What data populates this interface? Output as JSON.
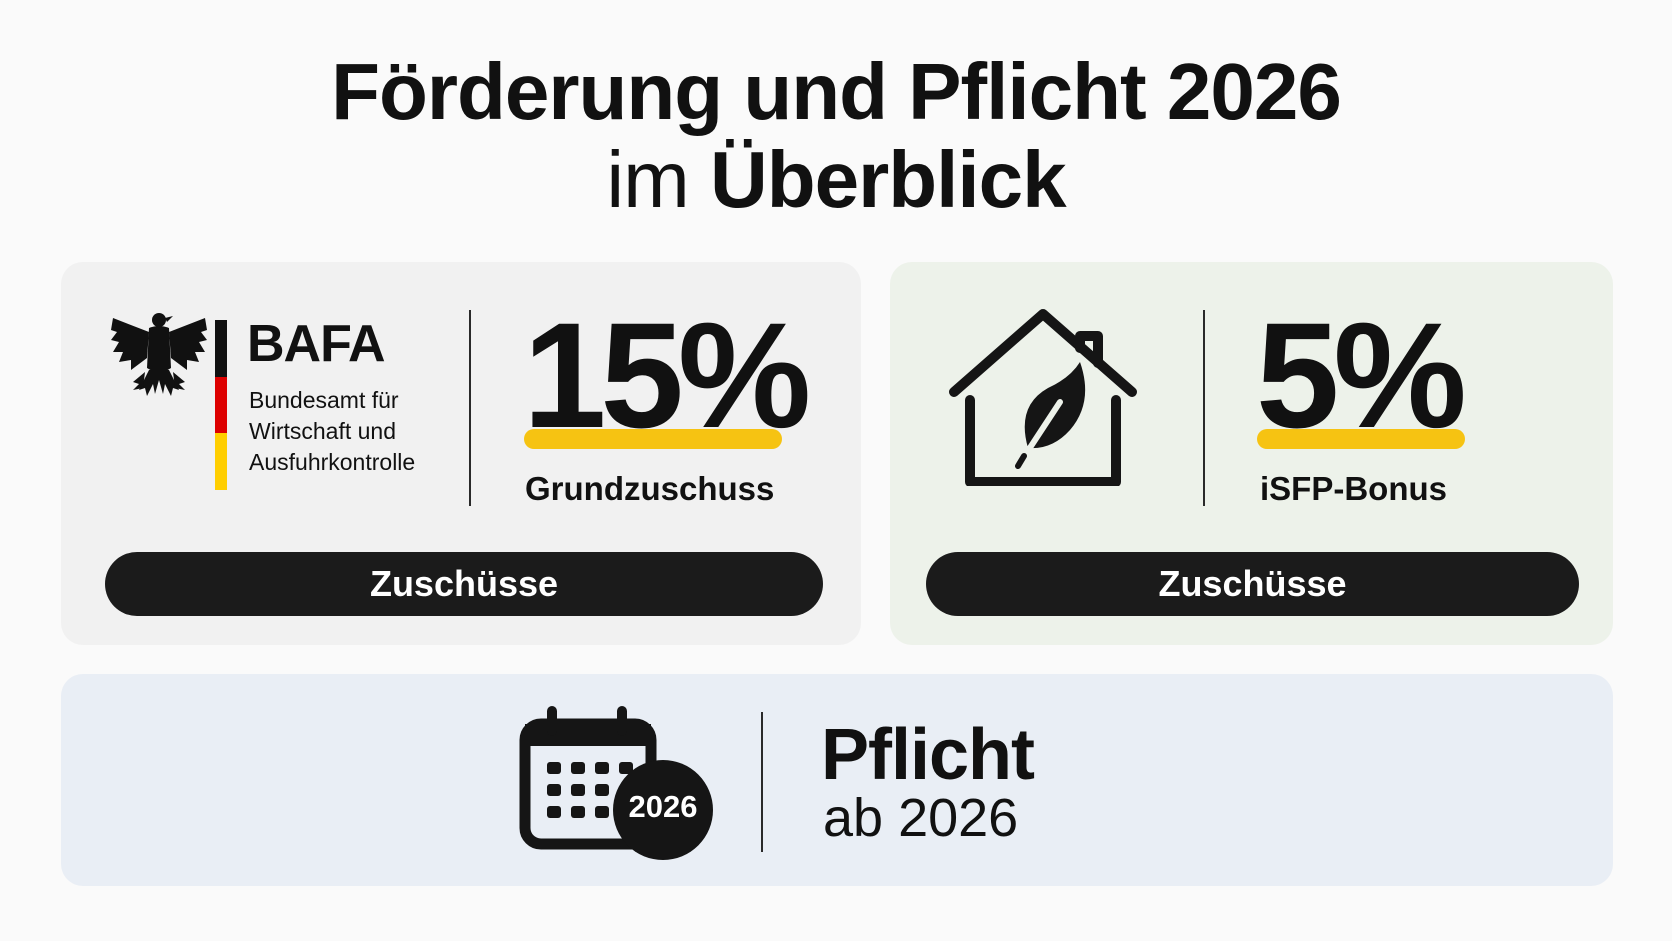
{
  "title": {
    "line1": "Förderung und Pflicht 2026",
    "line2_prefix": "im",
    "line2_bold": "Überblick"
  },
  "bafa_card": {
    "logo_name": "BAFA",
    "logo_subtitle_lines": [
      "Bundesamt für",
      "Wirtschaft und",
      "Ausfuhrkontrolle"
    ],
    "value": "15%",
    "value_label": "Grundzuschuss",
    "button_label": "Zuschüsse"
  },
  "isfp_card": {
    "icon": "house-leaf-icon",
    "value": "5%",
    "value_label": "iSFP-Bonus",
    "button_label": "Zuschüsse"
  },
  "pflicht_card": {
    "icon": "calendar-icon",
    "calendar_badge": "2026",
    "title": "Pflicht",
    "subtitle": "ab 2026"
  },
  "colors": {
    "highlight": "#f6c312",
    "dark": "#1b1b1b",
    "flag_black": "#111111",
    "flag_red": "#dd0000",
    "flag_gold": "#ffce00"
  }
}
